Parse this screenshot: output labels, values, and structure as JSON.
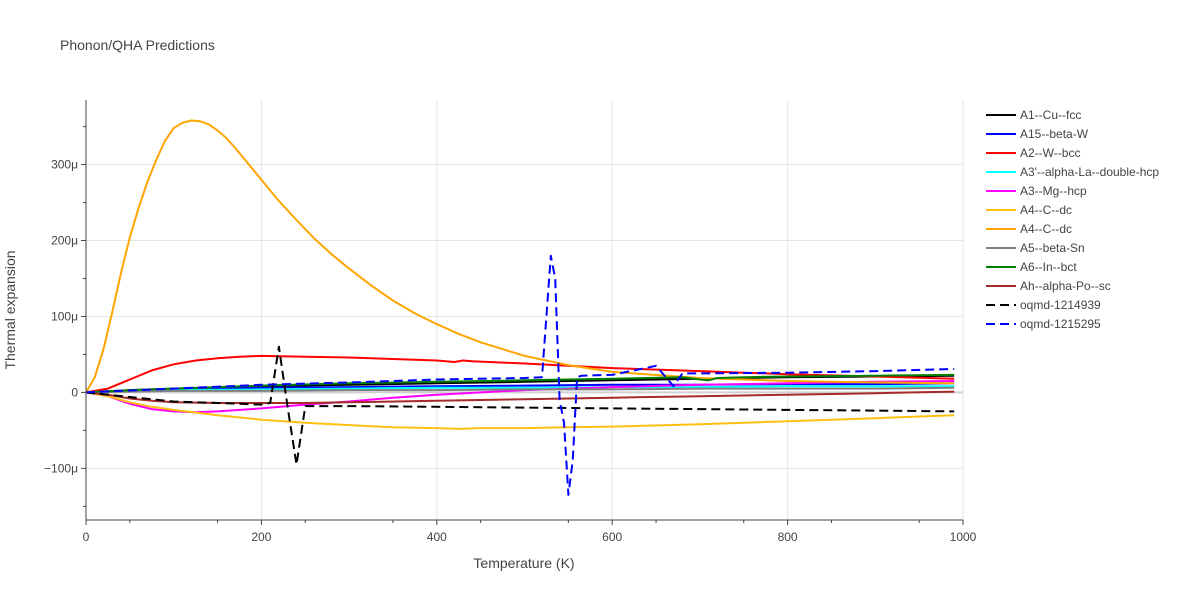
{
  "chart_data": {
    "type": "line",
    "title": "Phonon/QHA Predictions",
    "xlabel": "Temperature (K)",
    "ylabel": "Thermal expansion",
    "xlim": [
      0,
      1000
    ],
    "ylim": [
      -0.000168,
      0.000385
    ],
    "xticks": [
      0,
      200,
      400,
      600,
      800,
      1000
    ],
    "xtick_labels": [
      "0",
      "200",
      "400",
      "600",
      "800",
      "1000"
    ],
    "yticks": [
      -0.0001,
      0,
      0.0001,
      0.0002,
      0.0003
    ],
    "ytick_labels": [
      "−100μ",
      "0",
      "100μ",
      "200μ",
      "300μ"
    ],
    "grid": true,
    "legend_position": "right",
    "series": [
      {
        "name": "A1--Cu--fcc",
        "color": "#000000",
        "dash": "solid",
        "x": [
          0,
          50,
          100,
          200,
          300,
          400,
          500,
          600,
          700,
          800,
          900,
          990
        ],
        "y": [
          0,
          3e-06,
          5e-06,
          8e-06,
          1e-05,
          1.2e-05,
          1.4e-05,
          1.6e-05,
          1.8e-05,
          2e-05,
          2.1e-05,
          2.2e-05
        ]
      },
      {
        "name": "A15--beta-W",
        "color": "#0000ff",
        "dash": "solid",
        "x": [
          0,
          50,
          100,
          200,
          300,
          400,
          500,
          600,
          700,
          800,
          900,
          990
        ],
        "y": [
          0,
          2e-06,
          4e-06,
          6e-06,
          7e-06,
          8e-06,
          9e-06,
          1e-05,
          1e-05,
          1.1e-05,
          1.1e-05,
          1.2e-05
        ]
      },
      {
        "name": "A2--W--bcc",
        "color": "#ff0000",
        "dash": "solid",
        "x": [
          0,
          25,
          50,
          75,
          100,
          125,
          150,
          175,
          200,
          250,
          300,
          350,
          400,
          420,
          430,
          440,
          500,
          550,
          600,
          700,
          800,
          900,
          990
        ],
        "y": [
          0,
          5e-06,
          1.7e-05,
          2.9e-05,
          3.7e-05,
          4.2e-05,
          4.5e-05,
          4.7e-05,
          4.8e-05,
          4.7e-05,
          4.6e-05,
          4.4e-05,
          4.2e-05,
          4e-05,
          4.2e-05,
          4.1e-05,
          3.8e-05,
          3.5e-05,
          3.2e-05,
          2.8e-05,
          2.4e-05,
          2.1e-05,
          1.8e-05
        ]
      },
      {
        "name": "A3'--alpha-La--double-hcp",
        "color": "#00ffff",
        "dash": "solid",
        "x": [
          0,
          50,
          100,
          200,
          300,
          400,
          500,
          600,
          700,
          800,
          900,
          990
        ],
        "y": [
          0,
          2e-06,
          3e-06,
          4e-06,
          5e-06,
          6e-06,
          6e-06,
          7e-06,
          7e-06,
          8e-06,
          8e-06,
          8e-06
        ]
      },
      {
        "name": "A3--Mg--hcp",
        "color": "#ff00ff",
        "dash": "solid",
        "x": [
          0,
          25,
          50,
          75,
          100,
          125,
          150,
          200,
          250,
          300,
          350,
          400,
          450,
          500,
          600,
          700,
          800,
          900,
          990
        ],
        "y": [
          0,
          -5e-06,
          -1.5e-05,
          -2.2e-05,
          -2.5e-05,
          -2.6e-05,
          -2.5e-05,
          -2.1e-05,
          -1.6e-05,
          -1.2e-05,
          -7e-06,
          -3e-06,
          0,
          3e-06,
          7e-06,
          1e-05,
          1.2e-05,
          1.4e-05,
          1.5e-05
        ]
      },
      {
        "name": "A4--C--dc",
        "color": "#fdbf12",
        "dash": "solid",
        "x": [
          0,
          25,
          50,
          75,
          100,
          150,
          200,
          250,
          300,
          350,
          400,
          425,
          450,
          500,
          550,
          600,
          700,
          800,
          900,
          990
        ],
        "y": [
          0,
          -5e-06,
          -1.3e-05,
          -1.9e-05,
          -2.3e-05,
          -3e-05,
          -3.6e-05,
          -4e-05,
          -4.3e-05,
          -4.6e-05,
          -4.7e-05,
          -4.8e-05,
          -4.7e-05,
          -4.7e-05,
          -4.6e-05,
          -4.5e-05,
          -4.2e-05,
          -3.8e-05,
          -3.4e-05,
          -3e-05
        ]
      },
      {
        "name": "A4--C--dc",
        "color": "#ffa500",
        "dash": "solid",
        "x": [
          0,
          10,
          20,
          30,
          40,
          50,
          60,
          70,
          80,
          90,
          100,
          110,
          120,
          130,
          140,
          150,
          160,
          170,
          180,
          200,
          220,
          240,
          260,
          280,
          300,
          325,
          350,
          375,
          400,
          425,
          450,
          500,
          550,
          600,
          700,
          800,
          900,
          990
        ],
        "y": [
          0,
          2e-05,
          5.7e-05,
          0.000106,
          0.000158,
          0.000204,
          0.000243,
          0.000277,
          0.000306,
          0.000331,
          0.000348,
          0.000355,
          0.000358,
          0.000357,
          0.000353,
          0.000345,
          0.000335,
          0.000322,
          0.000308,
          0.00028,
          0.000252,
          0.000227,
          0.000203,
          0.000182,
          0.000163,
          0.000141,
          0.000121,
          0.000104,
          9e-05,
          7.7e-05,
          6.6e-05,
          4.8e-05,
          3.6e-05,
          2.7e-05,
          1.9e-05,
          1.5e-05,
          1.3e-05,
          1.2e-05
        ]
      },
      {
        "name": "A5--beta-Sn",
        "color": "#808080",
        "dash": "solid",
        "x": [
          0,
          50,
          100,
          200,
          300,
          400,
          500,
          600,
          700,
          800,
          900,
          990
        ],
        "y": [
          0,
          1e-06,
          2e-06,
          2e-06,
          3e-06,
          3e-06,
          4e-06,
          4e-06,
          5e-06,
          5e-06,
          5e-06,
          6e-06
        ]
      },
      {
        "name": "A6--In--bct",
        "color": "#008000",
        "dash": "solid",
        "x": [
          0,
          50,
          100,
          200,
          300,
          400,
          500,
          600,
          680,
          700,
          710,
          720,
          750,
          800,
          900,
          990
        ],
        "y": [
          0,
          3e-06,
          5e-06,
          9e-06,
          1.2e-05,
          1.4e-05,
          1.6e-05,
          1.8e-05,
          2e-05,
          1.7e-05,
          1.6e-05,
          1.9e-05,
          2e-05,
          2.1e-05,
          2.2e-05,
          2.3e-05
        ]
      },
      {
        "name": "Ah--alpha-Po--sc",
        "color": "#a52a2a",
        "dash": "solid",
        "x": [
          0,
          25,
          50,
          75,
          100,
          150,
          200,
          250,
          300,
          400,
          500,
          600,
          700,
          800,
          900,
          990
        ],
        "y": [
          0,
          -3e-06,
          -8e-06,
          -1.1e-05,
          -1.3e-05,
          -1.4e-05,
          -1.4e-05,
          -1.4e-05,
          -1.3e-05,
          -1.1e-05,
          -9e-06,
          -7e-06,
          -5e-06,
          -3e-06,
          -1e-06,
          1e-06
        ]
      },
      {
        "name": "oqmd-1214939",
        "color": "#000000",
        "dash": "dash",
        "x": [
          0,
          50,
          100,
          150,
          200,
          210,
          220,
          230,
          240,
          250,
          300,
          400,
          500,
          600,
          700,
          800,
          900,
          990
        ],
        "y": [
          0,
          -6e-06,
          -1.2e-05,
          -1.4e-05,
          -1.6e-05,
          -1.4e-05,
          6e-05,
          -2e-05,
          -9.5e-05,
          -1.8e-05,
          -1.8e-05,
          -1.9e-05,
          -2e-05,
          -2.1e-05,
          -2.2e-05,
          -2.3e-05,
          -2.4e-05,
          -2.5e-05
        ]
      },
      {
        "name": "oqmd-1215295",
        "color": "#0000ff",
        "dash": "dash",
        "x": [
          0,
          100,
          200,
          300,
          400,
          500,
          520,
          530,
          535,
          540,
          545,
          550,
          555,
          560,
          565,
          600,
          650,
          670,
          680,
          700,
          800,
          900,
          990
        ],
        "y": [
          0,
          5e-06,
          1e-05,
          1.3e-05,
          1.7e-05,
          1.9e-05,
          2e-05,
          0.00018,
          0.00015,
          -1e-05,
          -4e-05,
          -0.000135,
          -9e-05,
          2e-05,
          2.2e-05,
          2.3e-05,
          3.5e-05,
          8e-06,
          2.5e-05,
          2.5e-05,
          2.6e-05,
          2.8e-05,
          3.1e-05
        ]
      }
    ]
  }
}
